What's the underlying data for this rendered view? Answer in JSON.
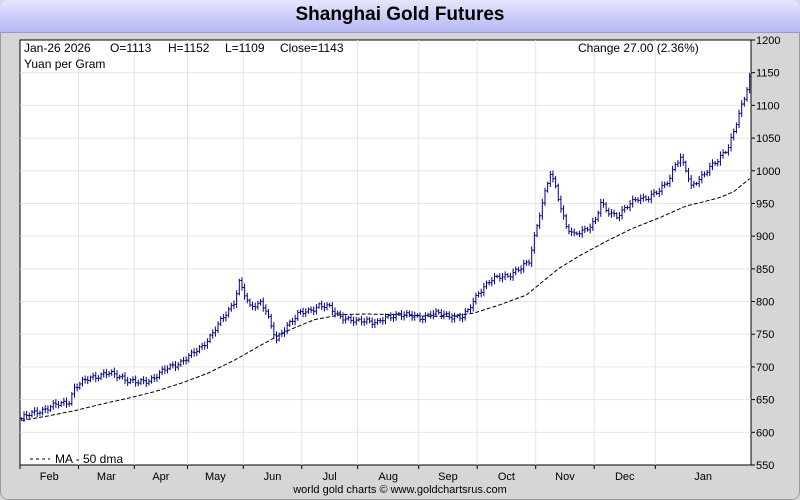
{
  "chart_data": {
    "type": "ohlc",
    "title": "Shanghai Gold Futures",
    "info": {
      "date": "Jan-26  2026",
      "open": "O=1113",
      "high": "H=1152",
      "low": "L=1109",
      "close": "Close=1143",
      "change": "Change 27.00 (2.36%)"
    },
    "unit": "Yuan per Gram",
    "legend": "MA - 50 dma",
    "footer": "world gold charts © www.goldchartsrus.com",
    "ylim": [
      550,
      1200
    ],
    "y_ticks": [
      550,
      600,
      650,
      700,
      750,
      800,
      850,
      900,
      950,
      1000,
      1050,
      1100,
      1150,
      1200
    ],
    "x_months": [
      "Feb",
      "Mar",
      "Apr",
      "May",
      "Jun",
      "Jul",
      "Aug",
      "Sep",
      "Oct",
      "Nov",
      "Dec",
      "Jan"
    ],
    "grid": true,
    "colors": {
      "bars": "#00008b",
      "ma": "#000000",
      "grid": "#e4e4e4",
      "title_bg": "#c8c8f8"
    },
    "price_path": [
      [
        0,
        621
      ],
      [
        6,
        632
      ],
      [
        12,
        640
      ],
      [
        18,
        648
      ],
      [
        20,
        668
      ],
      [
        26,
        684
      ],
      [
        32,
        690
      ],
      [
        38,
        685
      ],
      [
        40,
        680
      ],
      [
        44,
        675
      ],
      [
        48,
        680
      ],
      [
        52,
        690
      ],
      [
        56,
        700
      ],
      [
        60,
        708
      ],
      [
        64,
        718
      ],
      [
        68,
        732
      ],
      [
        72,
        752
      ],
      [
        76,
        775
      ],
      [
        80,
        800
      ],
      [
        82,
        830
      ],
      [
        84,
        810
      ],
      [
        86,
        790
      ],
      [
        90,
        800
      ],
      [
        92,
        788
      ],
      [
        94,
        760
      ],
      [
        96,
        740
      ],
      [
        100,
        765
      ],
      [
        104,
        780
      ],
      [
        108,
        785
      ],
      [
        112,
        795
      ],
      [
        116,
        790
      ],
      [
        118,
        782
      ],
      [
        122,
        775
      ],
      [
        126,
        768
      ],
      [
        130,
        772
      ],
      [
        134,
        768
      ],
      [
        138,
        775
      ],
      [
        142,
        782
      ],
      [
        146,
        778
      ],
      [
        150,
        775
      ],
      [
        154,
        782
      ],
      [
        158,
        780
      ],
      [
        162,
        778
      ],
      [
        166,
        776
      ],
      [
        168,
        785
      ],
      [
        170,
        800
      ],
      [
        172,
        815
      ],
      [
        176,
        830
      ],
      [
        180,
        838
      ],
      [
        184,
        842
      ],
      [
        188,
        850
      ],
      [
        191,
        862
      ],
      [
        193,
        900
      ],
      [
        195,
        935
      ],
      [
        197,
        965
      ],
      [
        199,
        995
      ],
      [
        201,
        975
      ],
      [
        203,
        945
      ],
      [
        205,
        915
      ],
      [
        208,
        900
      ],
      [
        212,
        910
      ],
      [
        216,
        925
      ],
      [
        218,
        950
      ],
      [
        220,
        938
      ],
      [
        224,
        932
      ],
      [
        228,
        945
      ],
      [
        232,
        958
      ],
      [
        236,
        960
      ],
      [
        240,
        968
      ],
      [
        244,
        990
      ],
      [
        246,
        1012
      ],
      [
        248,
        1018
      ],
      [
        250,
        1000
      ],
      [
        252,
        975
      ],
      [
        254,
        985
      ],
      [
        258,
        1000
      ],
      [
        262,
        1015
      ],
      [
        264,
        1028
      ],
      [
        266,
        1038
      ],
      [
        268,
        1060
      ],
      [
        270,
        1085
      ],
      [
        272,
        1110
      ],
      [
        274,
        1143
      ]
    ],
    "ma_path": [
      [
        0,
        618
      ],
      [
        10,
        625
      ],
      [
        20,
        633
      ],
      [
        30,
        643
      ],
      [
        40,
        652
      ],
      [
        50,
        662
      ],
      [
        60,
        675
      ],
      [
        70,
        690
      ],
      [
        80,
        710
      ],
      [
        90,
        733
      ],
      [
        100,
        755
      ],
      [
        110,
        772
      ],
      [
        120,
        780
      ],
      [
        130,
        781
      ],
      [
        140,
        780
      ],
      [
        150,
        778
      ],
      [
        160,
        777
      ],
      [
        170,
        782
      ],
      [
        180,
        795
      ],
      [
        190,
        810
      ],
      [
        196,
        830
      ],
      [
        202,
        850
      ],
      [
        210,
        870
      ],
      [
        220,
        892
      ],
      [
        230,
        912
      ],
      [
        240,
        928
      ],
      [
        250,
        946
      ],
      [
        256,
        952
      ],
      [
        262,
        958
      ],
      [
        268,
        968
      ],
      [
        274,
        988
      ]
    ]
  }
}
